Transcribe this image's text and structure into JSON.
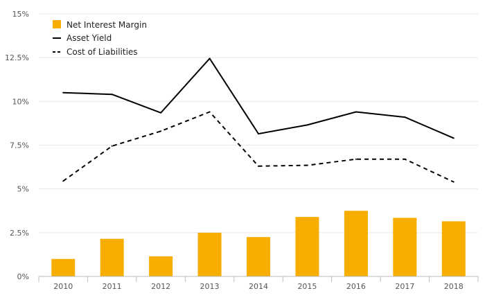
{
  "chart_data": {
    "type": "bar+line",
    "categories": [
      "2010",
      "2011",
      "2012",
      "2013",
      "2014",
      "2015",
      "2016",
      "2017",
      "2018"
    ],
    "series": [
      {
        "name": "Net Interest Margin",
        "kind": "bar",
        "color": "#F7AE00",
        "values": [
          1.0,
          2.15,
          1.15,
          2.5,
          2.25,
          3.4,
          3.75,
          3.35,
          3.15
        ]
      },
      {
        "name": "Asset Yield",
        "kind": "line",
        "dash": "solid",
        "color": "#000000",
        "values": [
          10.5,
          10.4,
          9.35,
          12.45,
          8.15,
          8.65,
          9.4,
          9.1,
          7.9
        ]
      },
      {
        "name": "Cost of Liabilities",
        "kind": "line",
        "dash": "dashed",
        "color": "#000000",
        "values": [
          5.45,
          7.45,
          8.3,
          9.4,
          6.3,
          6.35,
          6.7,
          6.7,
          5.4
        ]
      }
    ],
    "yticks": [
      "0%",
      "2.5%",
      "5%",
      "7.5%",
      "10%",
      "12.5%",
      "15%"
    ],
    "ylim": [
      0,
      15
    ],
    "grid": true,
    "legend_position": "top-left"
  }
}
